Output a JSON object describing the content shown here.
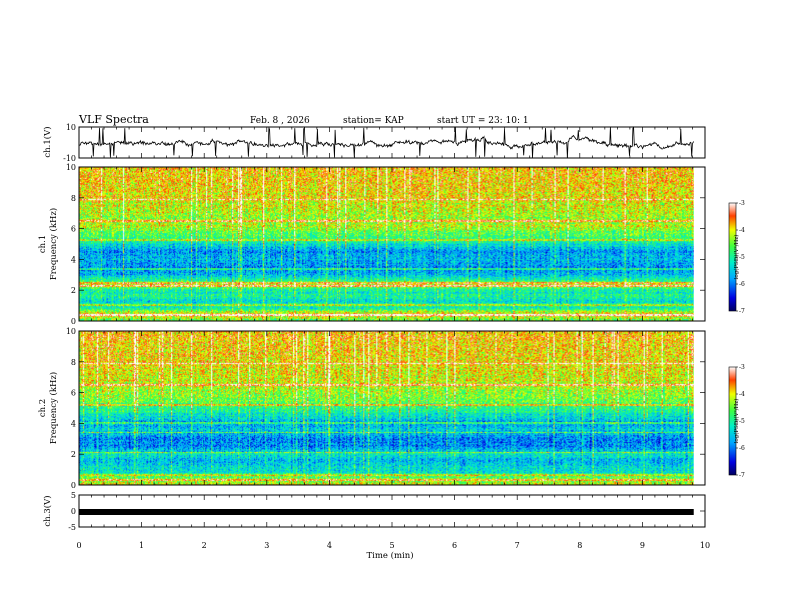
{
  "chart_data": {
    "type": "heatmap",
    "title": "VLF Spectra",
    "date": "Feb. 8 , 2026",
    "station": "station= KAP",
    "start": "start  UT  =   23: 10: 1",
    "xlabel": "Time  (min)",
    "xlim": [
      0,
      10
    ],
    "x_ticks": [
      "0",
      "1",
      "2",
      "3",
      "4",
      "5",
      "6",
      "7",
      "8",
      "9",
      "10"
    ],
    "data_end_min": 9.82,
    "panels": [
      {
        "id": "ch1v",
        "type": "line",
        "ylabel": "ch.1(V)",
        "ylim": [
          -10,
          10
        ],
        "y_ticks": [
          "10",
          "-10"
        ],
        "baseline": -0.8
      },
      {
        "id": "ch1",
        "type": "heatmap",
        "ylabel_1": "ch.1",
        "ylabel_2": "Frequency  (kHz)",
        "ylim": [
          0,
          10
        ],
        "y_ticks": [
          "0",
          "2",
          "4",
          "6",
          "8",
          "10"
        ],
        "z_label": "log(PSD)(V²/Hz)",
        "zlim": [
          -7,
          -3
        ],
        "z_ticks": [
          "-3",
          "-4",
          "-5",
          "-6",
          "-7"
        ],
        "band_profile": [
          {
            "f": 0.0,
            "z": -4.6
          },
          {
            "f": 0.4,
            "z": -3.8
          },
          {
            "f": 0.8,
            "z": -5.0
          },
          {
            "f": 1.2,
            "z": -5.3
          },
          {
            "f": 1.6,
            "z": -5.0
          },
          {
            "f": 2.0,
            "z": -5.2
          },
          {
            "f": 2.3,
            "z": -4.1
          },
          {
            "f": 2.6,
            "z": -4.9
          },
          {
            "f": 3.0,
            "z": -5.6
          },
          {
            "f": 3.5,
            "z": -5.9
          },
          {
            "f": 4.0,
            "z": -5.6
          },
          {
            "f": 4.5,
            "z": -5.8
          },
          {
            "f": 5.0,
            "z": -5.3
          },
          {
            "f": 5.6,
            "z": -4.7
          },
          {
            "f": 6.2,
            "z": -4.2
          },
          {
            "f": 6.8,
            "z": -4.3
          },
          {
            "f": 7.5,
            "z": -4.1
          },
          {
            "f": 8.5,
            "z": -3.9
          },
          {
            "f": 10.0,
            "z": -3.8
          }
        ],
        "lines_khz": [
          0.35,
          1.0,
          2.25,
          2.45,
          3.35,
          5.25,
          6.5,
          7.9
        ]
      },
      {
        "id": "ch2",
        "type": "heatmap",
        "ylabel_1": "ch.2",
        "ylabel_2": "Frequency  (kHz)",
        "ylim": [
          0,
          10
        ],
        "y_ticks": [
          "0",
          "2",
          "4",
          "6",
          "8",
          "10"
        ],
        "z_label": "log(PSD)(V²/Hz)",
        "zlim": [
          -7,
          -3
        ],
        "z_ticks": [
          "-3",
          "-4",
          "-5",
          "-6",
          "-7"
        ],
        "band_profile": [
          {
            "f": 0.0,
            "z": -4.2
          },
          {
            "f": 0.4,
            "z": -4.6
          },
          {
            "f": 0.8,
            "z": -5.3
          },
          {
            "f": 1.2,
            "z": -5.4
          },
          {
            "f": 1.6,
            "z": -5.6
          },
          {
            "f": 2.0,
            "z": -5.3
          },
          {
            "f": 2.3,
            "z": -5.7
          },
          {
            "f": 2.6,
            "z": -5.9
          },
          {
            "f": 3.0,
            "z": -5.9
          },
          {
            "f": 3.5,
            "z": -5.5
          },
          {
            "f": 4.0,
            "z": -5.8
          },
          {
            "f": 4.5,
            "z": -5.3
          },
          {
            "f": 5.0,
            "z": -4.9
          },
          {
            "f": 5.6,
            "z": -4.5
          },
          {
            "f": 6.2,
            "z": -4.3
          },
          {
            "f": 6.8,
            "z": -4.1
          },
          {
            "f": 7.5,
            "z": -4.0
          },
          {
            "f": 8.5,
            "z": -3.9
          },
          {
            "f": 10.0,
            "z": -3.8
          }
        ],
        "lines_khz": [
          0.3,
          0.6,
          2.1,
          3.4,
          4.0,
          5.2,
          6.5,
          7.9
        ]
      },
      {
        "id": "ch3v",
        "type": "line",
        "ylabel": "ch.3(V)",
        "ylim": [
          -5,
          5
        ],
        "y_ticks": [
          "5",
          "0",
          "-5"
        ],
        "baseline": -0.3
      }
    ]
  }
}
